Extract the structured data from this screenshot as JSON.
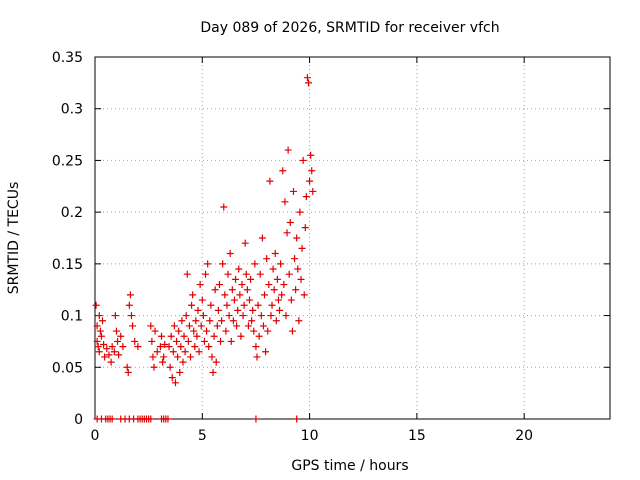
{
  "chart_data": {
    "type": "scatter",
    "title": "Day 089 of 2026, SRMTID for receiver vfch",
    "xlabel": "GPS time / hours",
    "ylabel": "SRMTID / TECUs",
    "xlim": [
      0,
      24
    ],
    "ylim": [
      0,
      0.35
    ],
    "xticks": [
      0,
      5,
      10,
      15,
      20
    ],
    "xtick_labels": [
      "0",
      "5",
      "10",
      "15",
      "20"
    ],
    "yticks": [
      0,
      0.05,
      0.1,
      0.15,
      0.2,
      0.25,
      0.3,
      0.35
    ],
    "ytick_labels": [
      "0",
      "0.05",
      "0.1",
      "0.15",
      "0.2",
      "0.25",
      "0.3",
      "0.35"
    ],
    "grid": true,
    "marker": "+",
    "color": "#e00000",
    "series": [
      {
        "points": [
          [
            0.05,
            0.11
          ],
          [
            0.1,
            0.09
          ],
          [
            0.1,
            0.075
          ],
          [
            0.15,
            0.07
          ],
          [
            0.2,
            0.1
          ],
          [
            0.2,
            0.065
          ],
          [
            0.25,
            0.085
          ],
          [
            0.3,
            0.08
          ],
          [
            0.35,
            0.095
          ],
          [
            0.4,
            0.072
          ],
          [
            0.45,
            0.06
          ],
          [
            0.55,
            0.068
          ],
          [
            0.65,
            0.062
          ],
          [
            0.75,
            0.055
          ],
          [
            0.8,
            0.07
          ],
          [
            0.9,
            0.065
          ],
          [
            0.95,
            0.1
          ],
          [
            1.0,
            0.085
          ],
          [
            1.05,
            0.075
          ],
          [
            1.1,
            0.062
          ],
          [
            1.2,
            0.08
          ],
          [
            1.3,
            0.07
          ],
          [
            1.5,
            0.05
          ],
          [
            1.55,
            0.045
          ],
          [
            1.6,
            0.11
          ],
          [
            1.65,
            0.12
          ],
          [
            1.7,
            0.1
          ],
          [
            1.75,
            0.09
          ],
          [
            1.85,
            0.075
          ],
          [
            2.0,
            0.07
          ],
          [
            2.6,
            0.09
          ],
          [
            2.65,
            0.075
          ],
          [
            2.7,
            0.06
          ],
          [
            2.75,
            0.05
          ],
          [
            2.8,
            0.085
          ],
          [
            2.9,
            0.065
          ],
          [
            3.05,
            0.07
          ],
          [
            3.1,
            0.08
          ],
          [
            3.15,
            0.055
          ],
          [
            3.2,
            0.06
          ],
          [
            3.25,
            0.072
          ],
          [
            3.45,
            0.07
          ],
          [
            3.5,
            0.05
          ],
          [
            3.55,
            0.08
          ],
          [
            3.6,
            0.04
          ],
          [
            3.65,
            0.065
          ],
          [
            3.7,
            0.09
          ],
          [
            3.75,
            0.035
          ],
          [
            3.8,
            0.075
          ],
          [
            3.85,
            0.06
          ],
          [
            3.9,
            0.085
          ],
          [
            3.95,
            0.045
          ],
          [
            4.0,
            0.07
          ],
          [
            4.05,
            0.095
          ],
          [
            4.1,
            0.055
          ],
          [
            4.15,
            0.08
          ],
          [
            4.2,
            0.065
          ],
          [
            4.25,
            0.1
          ],
          [
            4.3,
            0.14
          ],
          [
            4.35,
            0.075
          ],
          [
            4.4,
            0.09
          ],
          [
            4.45,
            0.06
          ],
          [
            4.5,
            0.11
          ],
          [
            4.55,
            0.12
          ],
          [
            4.6,
            0.085
          ],
          [
            4.65,
            0.07
          ],
          [
            4.7,
            0.095
          ],
          [
            4.75,
            0.08
          ],
          [
            4.8,
            0.105
          ],
          [
            4.85,
            0.065
          ],
          [
            4.9,
            0.13
          ],
          [
            4.95,
            0.09
          ],
          [
            5.0,
            0.115
          ],
          [
            5.05,
            0.1
          ],
          [
            5.1,
            0.075
          ],
          [
            5.15,
            0.14
          ],
          [
            5.2,
            0.085
          ],
          [
            5.25,
            0.15
          ],
          [
            5.3,
            0.07
          ],
          [
            5.35,
            0.095
          ],
          [
            5.4,
            0.11
          ],
          [
            5.45,
            0.06
          ],
          [
            5.5,
            0.045
          ],
          [
            5.55,
            0.08
          ],
          [
            5.6,
            0.125
          ],
          [
            5.65,
            0.055
          ],
          [
            5.7,
            0.09
          ],
          [
            5.75,
            0.105
          ],
          [
            5.8,
            0.13
          ],
          [
            5.85,
            0.075
          ],
          [
            5.9,
            0.095
          ],
          [
            5.95,
            0.15
          ],
          [
            6.0,
            0.205
          ],
          [
            6.05,
            0.12
          ],
          [
            6.1,
            0.085
          ],
          [
            6.15,
            0.11
          ],
          [
            6.2,
            0.14
          ],
          [
            6.25,
            0.1
          ],
          [
            6.3,
            0.16
          ],
          [
            6.35,
            0.075
          ],
          [
            6.4,
            0.125
          ],
          [
            6.45,
            0.095
          ],
          [
            6.5,
            0.115
          ],
          [
            6.55,
            0.135
          ],
          [
            6.6,
            0.09
          ],
          [
            6.65,
            0.105
          ],
          [
            6.7,
            0.145
          ],
          [
            6.75,
            0.12
          ],
          [
            6.8,
            0.08
          ],
          [
            6.85,
            0.13
          ],
          [
            6.9,
            0.1
          ],
          [
            6.95,
            0.11
          ],
          [
            7.0,
            0.17
          ],
          [
            7.05,
            0.14
          ],
          [
            7.1,
            0.125
          ],
          [
            7.15,
            0.09
          ],
          [
            7.2,
            0.115
          ],
          [
            7.25,
            0.135
          ],
          [
            7.3,
            0.095
          ],
          [
            7.35,
            0.105
          ],
          [
            7.4,
            0.085
          ],
          [
            7.45,
            0.15
          ],
          [
            7.5,
            0.07
          ],
          [
            7.55,
            0.06
          ],
          [
            7.6,
            0.11
          ],
          [
            7.65,
            0.08
          ],
          [
            7.7,
            0.14
          ],
          [
            7.75,
            0.1
          ],
          [
            7.8,
            0.175
          ],
          [
            7.85,
            0.09
          ],
          [
            7.9,
            0.12
          ],
          [
            7.95,
            0.065
          ],
          [
            8.0,
            0.155
          ],
          [
            8.05,
            0.085
          ],
          [
            8.1,
            0.13
          ],
          [
            8.15,
            0.23
          ],
          [
            8.2,
            0.1
          ],
          [
            8.25,
            0.11
          ],
          [
            8.3,
            0.145
          ],
          [
            8.35,
            0.125
          ],
          [
            8.4,
            0.16
          ],
          [
            8.45,
            0.095
          ],
          [
            8.5,
            0.135
          ],
          [
            8.55,
            0.115
          ],
          [
            8.6,
            0.105
          ],
          [
            8.65,
            0.15
          ],
          [
            8.7,
            0.12
          ],
          [
            8.75,
            0.24
          ],
          [
            8.8,
            0.13
          ],
          [
            8.85,
            0.21
          ],
          [
            8.9,
            0.1
          ],
          [
            8.95,
            0.18
          ],
          [
            9.0,
            0.26
          ],
          [
            9.05,
            0.14
          ],
          [
            9.1,
            0.19
          ],
          [
            9.15,
            0.115
          ],
          [
            9.2,
            0.085
          ],
          [
            9.25,
            0.22
          ],
          [
            9.3,
            0.155
          ],
          [
            9.35,
            0.125
          ],
          [
            9.4,
            0.175
          ],
          [
            9.45,
            0.145
          ],
          [
            9.5,
            0.095
          ],
          [
            9.55,
            0.2
          ],
          [
            9.6,
            0.135
          ],
          [
            9.65,
            0.165
          ],
          [
            9.7,
            0.25
          ],
          [
            9.75,
            0.12
          ],
          [
            9.8,
            0.185
          ],
          [
            9.85,
            0.215
          ],
          [
            9.9,
            0.33
          ],
          [
            9.95,
            0.325
          ],
          [
            10.0,
            0.23
          ],
          [
            10.05,
            0.255
          ],
          [
            10.1,
            0.24
          ],
          [
            10.15,
            0.22
          ],
          [
            0.1,
            0.0
          ],
          [
            0.3,
            0.0
          ],
          [
            0.5,
            0.0
          ],
          [
            0.6,
            0.0
          ],
          [
            0.7,
            0.0
          ],
          [
            0.8,
            0.0
          ],
          [
            1.2,
            0.0
          ],
          [
            1.4,
            0.0
          ],
          [
            1.6,
            0.0
          ],
          [
            1.8,
            0.0
          ],
          [
            2.0,
            0.0
          ],
          [
            2.1,
            0.0
          ],
          [
            2.2,
            0.0
          ],
          [
            2.3,
            0.0
          ],
          [
            2.4,
            0.0
          ],
          [
            2.5,
            0.0
          ],
          [
            2.6,
            0.0
          ],
          [
            3.1,
            0.0
          ],
          [
            3.2,
            0.0
          ],
          [
            3.3,
            0.0
          ],
          [
            3.4,
            0.0
          ],
          [
            7.5,
            0.0
          ],
          [
            9.4,
            0.0
          ]
        ]
      }
    ]
  }
}
